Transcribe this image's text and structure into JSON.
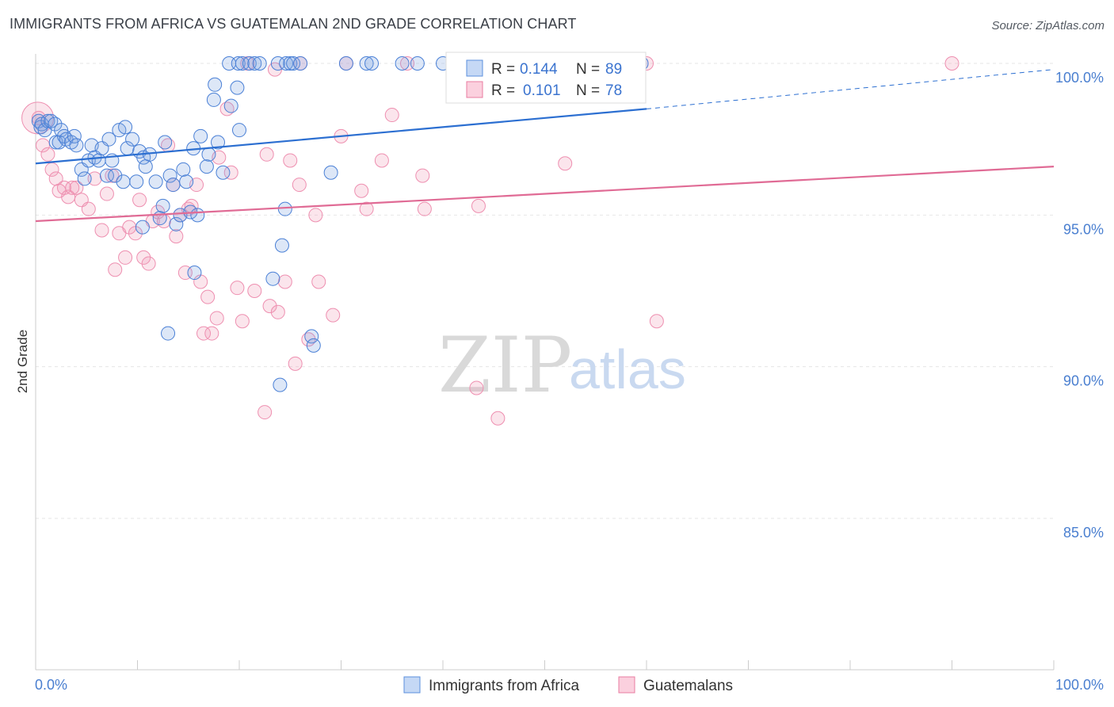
{
  "title": "IMMIGRANTS FROM AFRICA VS GUATEMALAN 2ND GRADE CORRELATION CHART",
  "source": "Source: ZipAtlas.com",
  "watermark": {
    "zip": "ZIP",
    "atlas": "atlas"
  },
  "legend": {
    "rows": [
      {
        "r_label": "R =",
        "r_value": "0.144",
        "n_label": "N =",
        "n_value": "89",
        "color": "#5b8fdd"
      },
      {
        "r_label": "R =",
        "r_value": "0.101",
        "n_label": "N =",
        "n_value": "78",
        "color": "#e87ca0"
      }
    ]
  },
  "bottom_legend": [
    {
      "label": "Immigrants from Africa",
      "color": "#5b8fdd"
    },
    {
      "label": "Guatemalans",
      "color": "#e87ca0"
    }
  ],
  "colors": {
    "blue": "#4a80d6",
    "blue_line": "#2c6fd1",
    "pink": "#ee8fb0",
    "pink_line": "#e06b95",
    "tick": "#4a7fd0",
    "grid": "#e6e6e6"
  },
  "chart_data": {
    "type": "scatter",
    "title": "IMMIGRANTS FROM AFRICA VS GUATEMALAN 2ND GRADE CORRELATION CHART",
    "xlabel": "",
    "ylabel": "2nd Grade",
    "xlim": [
      0,
      100
    ],
    "ylim": [
      80.5,
      100.8
    ],
    "x_tick_labels": [
      "0.0%",
      "100.0%"
    ],
    "y_ticks": [
      100,
      95,
      90,
      85
    ],
    "y_tick_labels": [
      "100.0%",
      "95.0%",
      "90.0%",
      "85.0%"
    ],
    "grid": true,
    "legend_position": "top-center",
    "series": [
      {
        "name": "Immigrants from Africa",
        "R": 0.144,
        "N": 89,
        "trend": {
          "x": [
            0,
            60
          ],
          "y": [
            96.7,
            98.5
          ],
          "dashed_to": [
            100,
            99.8
          ]
        },
        "points": [
          [
            0.3,
            98.1
          ],
          [
            0.5,
            97.9
          ],
          [
            0.6,
            98.0
          ],
          [
            0.9,
            97.8
          ],
          [
            1.2,
            98.1
          ],
          [
            1.5,
            98.1
          ],
          [
            1.9,
            98.0
          ],
          [
            2.0,
            97.4
          ],
          [
            2.3,
            97.4
          ],
          [
            2.5,
            97.8
          ],
          [
            2.8,
            97.6
          ],
          [
            3.0,
            97.5
          ],
          [
            3.5,
            97.4
          ],
          [
            3.8,
            97.6
          ],
          [
            4.0,
            97.3
          ],
          [
            4.5,
            96.5
          ],
          [
            4.8,
            96.2
          ],
          [
            5.2,
            96.8
          ],
          [
            5.5,
            97.3
          ],
          [
            5.8,
            96.9
          ],
          [
            6.2,
            96.8
          ],
          [
            6.5,
            97.2
          ],
          [
            7.0,
            96.3
          ],
          [
            7.2,
            97.5
          ],
          [
            7.5,
            96.8
          ],
          [
            7.8,
            96.3
          ],
          [
            8.2,
            97.8
          ],
          [
            8.6,
            96.1
          ],
          [
            8.8,
            97.9
          ],
          [
            9.0,
            97.2
          ],
          [
            9.5,
            97.5
          ],
          [
            9.9,
            96.1
          ],
          [
            10.2,
            97.1
          ],
          [
            10.6,
            96.9
          ],
          [
            10.8,
            96.6
          ],
          [
            11.2,
            97.0
          ],
          [
            11.8,
            96.1
          ],
          [
            12.2,
            94.9
          ],
          [
            12.5,
            95.3
          ],
          [
            12.7,
            97.4
          ],
          [
            13.0,
            91.1
          ],
          [
            13.2,
            96.3
          ],
          [
            13.5,
            96.0
          ],
          [
            13.8,
            94.7
          ],
          [
            14.2,
            95.0
          ],
          [
            14.5,
            96.5
          ],
          [
            14.8,
            96.1
          ],
          [
            15.2,
            95.1
          ],
          [
            15.5,
            97.2
          ],
          [
            15.6,
            93.1
          ],
          [
            15.9,
            95.0
          ],
          [
            16.2,
            97.6
          ],
          [
            16.8,
            96.6
          ],
          [
            17.0,
            97.0
          ],
          [
            17.5,
            98.8
          ],
          [
            17.6,
            99.3
          ],
          [
            17.9,
            97.4
          ],
          [
            18.4,
            96.4
          ],
          [
            19.0,
            100.0
          ],
          [
            19.2,
            98.6
          ],
          [
            19.8,
            99.2
          ],
          [
            19.9,
            100.0
          ],
          [
            20.0,
            97.8
          ],
          [
            20.3,
            100.0
          ],
          [
            21.0,
            100.0
          ],
          [
            21.5,
            100.0
          ],
          [
            22.0,
            100.0
          ],
          [
            23.3,
            92.9
          ],
          [
            23.8,
            100.0
          ],
          [
            24.6,
            100.0
          ],
          [
            24.2,
            94.0
          ],
          [
            25.0,
            100.0
          ],
          [
            25.3,
            100.0
          ],
          [
            24.0,
            89.4
          ],
          [
            24.5,
            95.2
          ],
          [
            26.0,
            100.0
          ],
          [
            27.1,
            91.0
          ],
          [
            27.3,
            90.7
          ],
          [
            29.0,
            96.4
          ],
          [
            30.5,
            100.0
          ],
          [
            32.5,
            100.0
          ],
          [
            33.0,
            100.0
          ],
          [
            36.0,
            100.0
          ],
          [
            37.5,
            100.0
          ],
          [
            40.0,
            100.0
          ],
          [
            42.5,
            100.0
          ],
          [
            45.0,
            100.0
          ],
          [
            59.5,
            100.0
          ],
          [
            10.5,
            94.6
          ]
        ]
      },
      {
        "name": "Guatemalans",
        "R": 0.101,
        "N": 78,
        "trend": {
          "x": [
            0,
            100
          ],
          "y": [
            94.8,
            96.6
          ]
        },
        "points": [
          [
            0.3,
            98.2
          ],
          [
            0.7,
            97.3
          ],
          [
            1.2,
            97.0
          ],
          [
            1.6,
            96.5
          ],
          [
            2.0,
            96.2
          ],
          [
            2.3,
            95.8
          ],
          [
            2.8,
            95.9
          ],
          [
            3.2,
            95.6
          ],
          [
            3.6,
            95.9
          ],
          [
            4.0,
            95.9
          ],
          [
            4.5,
            95.5
          ],
          [
            5.2,
            95.2
          ],
          [
            5.8,
            96.2
          ],
          [
            6.5,
            94.5
          ],
          [
            7.0,
            95.7
          ],
          [
            7.5,
            96.3
          ],
          [
            7.8,
            93.2
          ],
          [
            8.2,
            94.4
          ],
          [
            8.8,
            93.6
          ],
          [
            9.2,
            94.6
          ],
          [
            9.8,
            94.4
          ],
          [
            10.2,
            95.5
          ],
          [
            10.6,
            93.6
          ],
          [
            11.1,
            93.4
          ],
          [
            11.5,
            94.8
          ],
          [
            12.0,
            95.1
          ],
          [
            12.6,
            94.8
          ],
          [
            13.0,
            97.3
          ],
          [
            13.5,
            96.0
          ],
          [
            13.8,
            94.3
          ],
          [
            14.2,
            95.0
          ],
          [
            14.7,
            93.1
          ],
          [
            15.0,
            95.2
          ],
          [
            15.3,
            95.3
          ],
          [
            15.8,
            96.0
          ],
          [
            16.2,
            92.8
          ],
          [
            16.5,
            91.1
          ],
          [
            16.9,
            92.3
          ],
          [
            17.3,
            91.1
          ],
          [
            17.8,
            91.6
          ],
          [
            18.0,
            96.9
          ],
          [
            18.8,
            98.5
          ],
          [
            19.2,
            96.4
          ],
          [
            19.8,
            92.6
          ],
          [
            20.3,
            91.5
          ],
          [
            20.8,
            100.0
          ],
          [
            21.5,
            92.5
          ],
          [
            22.5,
            88.5
          ],
          [
            22.7,
            97.0
          ],
          [
            23.0,
            92.0
          ],
          [
            23.5,
            99.8
          ],
          [
            23.8,
            91.8
          ],
          [
            24.5,
            92.8
          ],
          [
            25.0,
            96.8
          ],
          [
            25.5,
            90.1
          ],
          [
            25.9,
            96.0
          ],
          [
            26.0,
            100.0
          ],
          [
            26.8,
            90.9
          ],
          [
            27.5,
            95.0
          ],
          [
            27.8,
            92.8
          ],
          [
            29.2,
            91.7
          ],
          [
            30.0,
            97.6
          ],
          [
            30.5,
            100.0
          ],
          [
            32.0,
            95.8
          ],
          [
            32.5,
            95.2
          ],
          [
            34.0,
            96.8
          ],
          [
            35.0,
            98.3
          ],
          [
            36.5,
            100.0
          ],
          [
            38.0,
            96.3
          ],
          [
            38.2,
            95.2
          ],
          [
            43.3,
            89.3
          ],
          [
            43.5,
            95.3
          ],
          [
            45.4,
            88.3
          ],
          [
            52.0,
            96.7
          ],
          [
            56.0,
            100.0
          ],
          [
            60.0,
            100.0
          ],
          [
            61.0,
            91.5
          ],
          [
            90.0,
            100.0
          ]
        ]
      }
    ]
  }
}
